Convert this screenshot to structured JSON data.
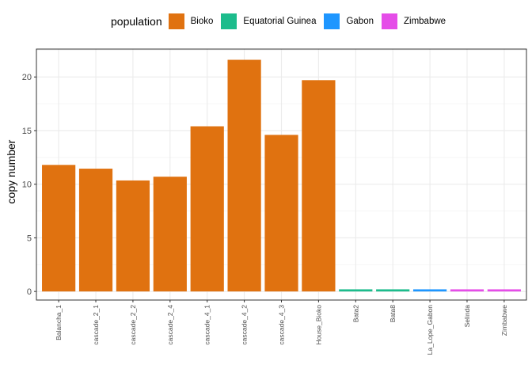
{
  "chart_data": {
    "type": "bar",
    "title": "",
    "xlabel": "",
    "ylabel": "copy number",
    "ylim": [
      -0.8,
      22.6
    ],
    "yticks": [
      0,
      5,
      10,
      15,
      20
    ],
    "grid": true,
    "legend_title": "population",
    "legend_position": "top",
    "legend": [
      {
        "name": "Bioko",
        "color": "#E07210"
      },
      {
        "name": "Equatorial Guinea",
        "color": "#1CBC8C"
      },
      {
        "name": "Gabon",
        "color": "#1E96FF"
      },
      {
        "name": "Zimbabwe",
        "color": "#E54DE8"
      }
    ],
    "categories": [
      "Balancha_1",
      "cascade_2_1",
      "cascade_2_2",
      "cascade_2_4",
      "cascade_4_1",
      "cascade_4_2",
      "cascade_4_3",
      "House_Bioko",
      "Bata2",
      "Bata8",
      "La_Lope_Gabon",
      "Selinda",
      "Zimbabwe"
    ],
    "values": [
      11.8,
      11.45,
      10.35,
      10.7,
      15.4,
      21.6,
      14.6,
      19.7,
      0.2,
      0.2,
      0.2,
      0.2,
      0.2
    ],
    "population": [
      "Bioko",
      "Bioko",
      "Bioko",
      "Bioko",
      "Bioko",
      "Bioko",
      "Bioko",
      "Bioko",
      "Equatorial Guinea",
      "Equatorial Guinea",
      "Gabon",
      "Zimbabwe",
      "Zimbabwe"
    ]
  }
}
